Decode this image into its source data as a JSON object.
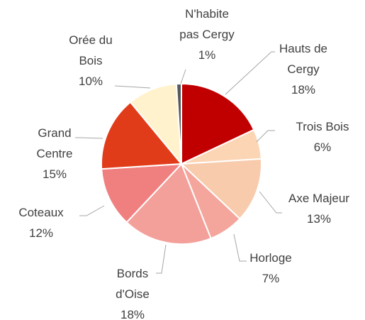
{
  "chart_data": {
    "type": "pie",
    "categories": [
      "Hauts de Cergy",
      "Trois Bois",
      "Axe Majeur",
      "Horloge",
      "Bords d'Oise",
      "Coteaux",
      "Grand Centre",
      "Orée du Bois",
      "N'habite pas Cergy"
    ],
    "values": [
      18,
      6,
      13,
      7,
      18,
      12,
      15,
      10,
      1
    ],
    "value_labels": [
      "18%",
      "6%",
      "13%",
      "7%",
      "18%",
      "12%",
      "15%",
      "10%",
      "1%"
    ],
    "colors": [
      "#c00000",
      "#fcd5b5",
      "#f8cbad",
      "#f4a59c",
      "#f4a09a",
      "#f08080",
      "#e03c1a",
      "#fff2cc",
      "#595959"
    ]
  }
}
